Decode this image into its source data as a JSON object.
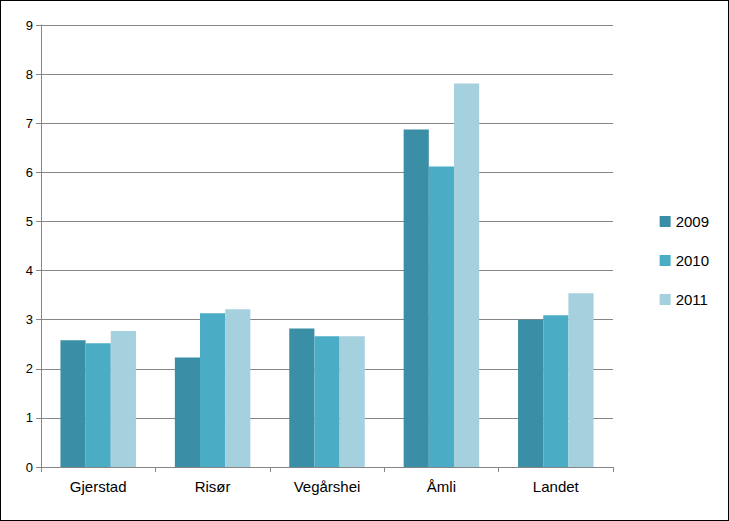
{
  "chart_data": {
    "type": "bar",
    "categories": [
      "Gjerstad",
      "Risør",
      "Vegårshei",
      "Åmli",
      "Landet"
    ],
    "series": [
      {
        "name": "2009",
        "color": "#3a8ea5",
        "values": [
          2.58,
          2.23,
          2.82,
          6.87,
          3.0
        ]
      },
      {
        "name": "2010",
        "color": "#4bacc6",
        "values": [
          2.52,
          3.13,
          2.66,
          6.12,
          3.09
        ]
      },
      {
        "name": "2011",
        "color": "#a5d0de",
        "values": [
          2.77,
          3.21,
          2.66,
          7.81,
          3.54
        ]
      }
    ],
    "ylim": [
      0,
      9
    ],
    "yticks": [
      0,
      1,
      2,
      3,
      4,
      5,
      6,
      7,
      8,
      9
    ],
    "grid": true,
    "legend": "right"
  }
}
